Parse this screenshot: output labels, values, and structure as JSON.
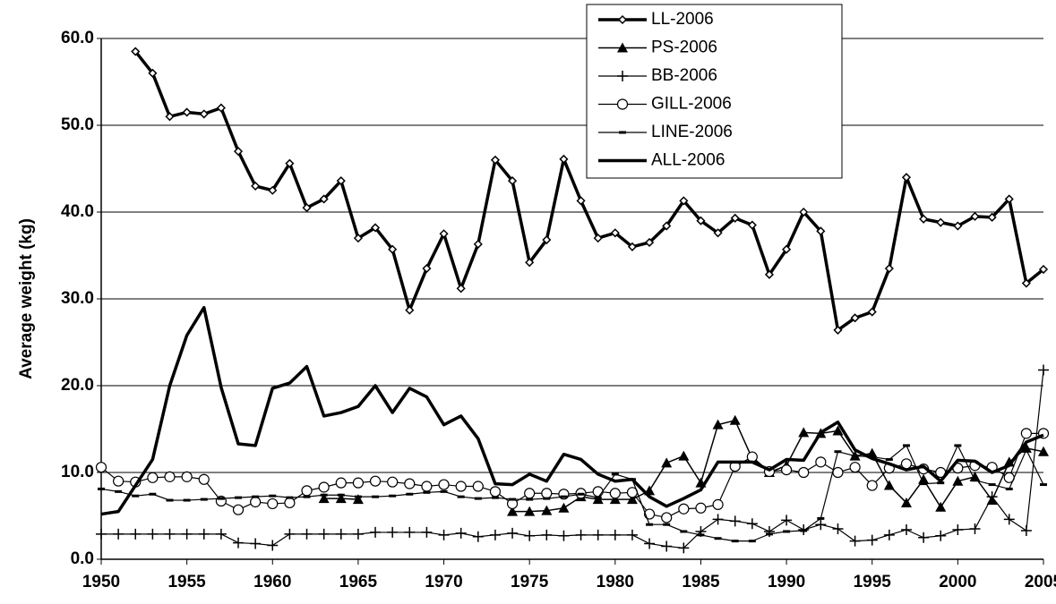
{
  "chart_data": {
    "type": "line",
    "y_label": "Average weight (kg)",
    "x": [
      1950,
      1951,
      1952,
      1953,
      1954,
      1955,
      1956,
      1957,
      1958,
      1959,
      1960,
      1961,
      1962,
      1963,
      1964,
      1965,
      1966,
      1967,
      1968,
      1969,
      1970,
      1971,
      1972,
      1973,
      1974,
      1975,
      1976,
      1977,
      1978,
      1979,
      1980,
      1981,
      1982,
      1983,
      1984,
      1985,
      1986,
      1987,
      1988,
      1989,
      1990,
      1991,
      1992,
      1993,
      1994,
      1995,
      1996,
      1997,
      1998,
      1999,
      2000,
      2001,
      2002,
      2003,
      2004,
      2005
    ],
    "xlim": [
      1950,
      2005
    ],
    "xticks": [
      1950,
      1955,
      1960,
      1965,
      1970,
      1975,
      1980,
      1985,
      1990,
      1995,
      2000,
      2005
    ],
    "ylim": [
      0,
      60
    ],
    "yticks": [
      {
        "value": 0,
        "label": "0.0"
      },
      {
        "value": 10,
        "label": "10.0"
      },
      {
        "value": 20,
        "label": "20.0"
      },
      {
        "value": 30,
        "label": "30.0"
      },
      {
        "value": 40,
        "label": "40.0"
      },
      {
        "value": 50,
        "label": "50.0"
      },
      {
        "value": 60,
        "label": "60.0"
      }
    ],
    "grid": true,
    "legend": "top",
    "series": [
      {
        "name": "LL-2006",
        "color": "#000000",
        "marker": "diamond",
        "line_width": 3.5,
        "values": [
          null,
          null,
          58.5,
          56,
          51,
          51.5,
          51.3,
          52,
          47,
          43,
          42.5,
          45.6,
          40.5,
          41.5,
          43.6,
          37,
          38.2,
          35.7,
          28.7,
          33.5,
          37.5,
          31.2,
          36.3,
          46,
          43.6,
          34.2,
          36.8,
          46.1,
          41.3,
          37,
          37.6,
          36,
          36.5,
          38.4,
          41.3,
          39,
          37.6,
          39.3,
          38.5,
          32.8,
          35.7,
          40,
          37.8,
          26.4,
          27.8,
          28.5,
          33.5,
          44,
          39.2,
          38.8,
          38.4,
          39.5,
          39.4,
          41.5,
          31.8,
          33.4
        ]
      },
      {
        "name": "PS-2006",
        "color": "#000000",
        "marker": "triangle",
        "line_width": 1.5,
        "values": [
          null,
          null,
          null,
          null,
          null,
          null,
          null,
          null,
          null,
          null,
          null,
          null,
          null,
          7,
          7,
          6.9,
          null,
          null,
          null,
          null,
          null,
          null,
          null,
          null,
          5.5,
          5.5,
          5.6,
          5.9,
          7.2,
          6.9,
          6.9,
          6.9,
          7.9,
          11.1,
          11.9,
          8.8,
          15.5,
          16,
          11.6,
          10,
          10.8,
          14.6,
          14.5,
          14.8,
          11.9,
          12.2,
          8.5,
          6.5,
          9.2,
          6,
          9,
          9.5,
          6.8,
          11.2,
          12.8,
          12.4
        ]
      },
      {
        "name": "BB-2006",
        "color": "#000000",
        "marker": "plus",
        "line_width": 1.2,
        "values": [
          2.9,
          2.9,
          2.9,
          2.9,
          2.9,
          2.9,
          2.9,
          2.9,
          1.9,
          1.8,
          1.6,
          2.9,
          2.9,
          2.9,
          2.9,
          2.9,
          3.1,
          3.1,
          3.1,
          3.1,
          2.8,
          3,
          2.6,
          2.8,
          3,
          2.7,
          2.8,
          2.7,
          2.8,
          2.8,
          2.8,
          2.8,
          1.8,
          1.5,
          1.3,
          3.2,
          4.6,
          4.4,
          4.1,
          3.2,
          4.5,
          3.4,
          4,
          3.5,
          2.1,
          2.2,
          2.8,
          3.4,
          2.5,
          2.7,
          3.4,
          3.5,
          7.2,
          4.6,
          3.3,
          21.8
        ]
      },
      {
        "name": "GILL-2006",
        "color": "#000000",
        "marker": "circle",
        "line_width": 1.2,
        "values": [
          10.6,
          9,
          8.9,
          9.4,
          9.5,
          9.5,
          9.2,
          6.7,
          5.7,
          6.6,
          6.4,
          6.5,
          7.9,
          8.3,
          8.8,
          8.8,
          9,
          8.9,
          8.7,
          8.4,
          8.6,
          8.4,
          8.4,
          7.8,
          6.4,
          7.6,
          7.6,
          7.5,
          7.6,
          7.8,
          7.6,
          7.7,
          5.2,
          4.8,
          5.8,
          5.9,
          6.3,
          10.7,
          11.8,
          10.1,
          10.3,
          10,
          11.2,
          10,
          10.6,
          8.5,
          10.5,
          11,
          10.4,
          10,
          10.5,
          10.8,
          10.6,
          9.4,
          14.5,
          14.5
        ]
      },
      {
        "name": "LINE-2006",
        "color": "#000000",
        "marker": "dash",
        "line_width": 1.2,
        "values": [
          8.1,
          7.8,
          7.3,
          7.5,
          6.8,
          6.8,
          6.9,
          7,
          7.1,
          7.2,
          7.3,
          7.1,
          7.2,
          7.4,
          7.4,
          7.2,
          7.2,
          7.3,
          7.5,
          7.7,
          7.8,
          7.2,
          7,
          7.1,
          6.9,
          6.9,
          7,
          7.2,
          7.5,
          7.1,
          9.8,
          9.2,
          4,
          4,
          3.2,
          2.8,
          2.4,
          2.1,
          2.1,
          2.9,
          3.2,
          3.3,
          4.7,
          12.4,
          11.9,
          11.8,
          11.5,
          13.1,
          8.7,
          8.8,
          13.1,
          9.1,
          8.6,
          8.1,
          12.6,
          8.6
        ]
      },
      {
        "name": "ALL-2006",
        "color": "#000000",
        "marker": "none",
        "line_width": 3.5,
        "values": [
          5.2,
          5.5,
          8.5,
          11.5,
          20,
          25.8,
          29,
          19.8,
          13.3,
          13.1,
          19.7,
          20.3,
          22.2,
          16.5,
          16.9,
          17.6,
          20,
          16.9,
          19.7,
          18.7,
          15.5,
          16.5,
          13.9,
          8.7,
          8.6,
          9.8,
          9,
          12.1,
          11.5,
          9.8,
          9,
          9.2,
          7.2,
          6.1,
          7,
          8,
          11.2,
          11.2,
          11.2,
          10.3,
          11.5,
          11.4,
          14.6,
          15.8,
          12.6,
          11.6,
          11,
          10.3,
          10.7,
          9,
          11.4,
          11.3,
          10,
          10.8,
          13.5,
          14.3
        ]
      }
    ]
  }
}
